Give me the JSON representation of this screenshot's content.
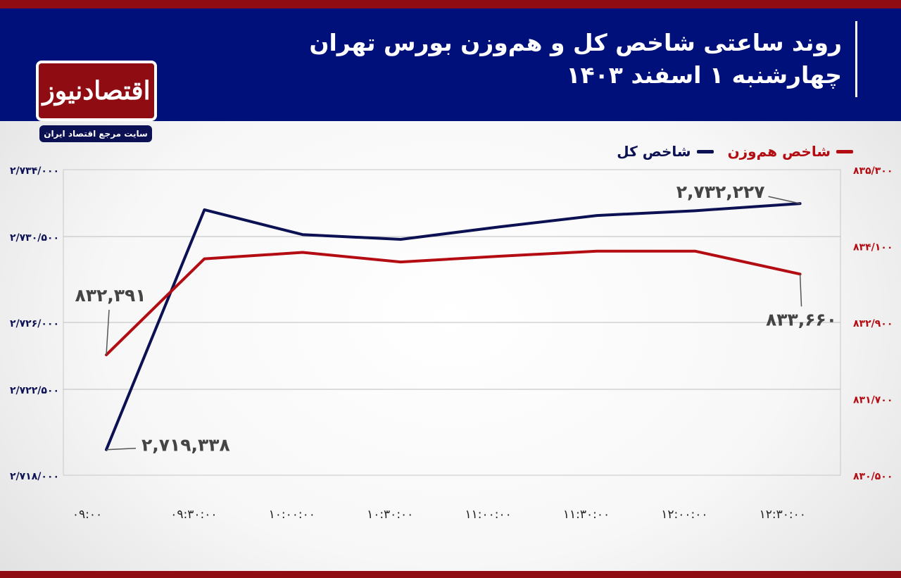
{
  "header": {
    "title": "روند ساعتی شاخص کل و هم‌وزن بورس تهران",
    "subtitle": "چهارشنبه ۱ اسفند ۱۴۰۳"
  },
  "logo": {
    "name": "اقتصادنیوز",
    "tagline": "سایت مرجع اقتصاد ایران"
  },
  "colors": {
    "header_bg": "#00107a",
    "accent_red": "#8f0d12",
    "total_index_line": "#0b1152",
    "equal_weight_line": "#b30c12"
  },
  "chart_data": {
    "type": "line",
    "x": [
      "۰۹:۰۰",
      "۰۹:۳۰:۰۰",
      "۱۰:۰۰:۰۰",
      "۱۰:۳۰:۰۰",
      "۱۱:۰۰:۰۰",
      "۱۱:۳۰:۰۰",
      "۱۲:۰۰:۰۰",
      "۱۲:۳۰:۰۰"
    ],
    "series": [
      {
        "name": "شاخص کل",
        "axis": "left",
        "color": "#0b1152",
        "values": [
          2719338,
          2731900,
          2730600,
          2730350,
          2731000,
          2731600,
          2731850,
          2732227
        ],
        "x_index": [
          0,
          1,
          2,
          3,
          4,
          5,
          6,
          7.07
        ]
      },
      {
        "name": "شاخص هم‌وزن",
        "axis": "right",
        "color": "#b30c12",
        "values": [
          832391,
          833900,
          834000,
          833850,
          833940,
          834020,
          834020,
          833660
        ],
        "x_index": [
          0,
          1,
          2,
          3,
          4,
          5,
          6,
          7.07
        ]
      }
    ],
    "left_axis": {
      "range": [
        2718000,
        2734000
      ],
      "ticks": [
        2718000,
        2722500,
        2726000,
        2730500,
        2734000
      ],
      "tick_labels": [
        "۲/۷۱۸/۰۰۰",
        "۲/۷۲۲/۵۰۰",
        "۲/۷۲۶/۰۰۰",
        "۲/۷۳۰/۵۰۰",
        "۲/۷۳۴/۰۰۰"
      ]
    },
    "right_axis": {
      "range": [
        830500,
        835300
      ],
      "ticks": [
        830500,
        831700,
        832900,
        834100,
        835300
      ],
      "tick_labels": [
        "۸۳۰/۵۰۰",
        "۸۳۱/۷۰۰",
        "۸۳۲/۹۰۰",
        "۸۳۴/۱۰۰",
        "۸۳۵/۳۰۰"
      ]
    },
    "annotations": [
      {
        "series": 0,
        "index": 0,
        "text": "۲,۷۱۹,۳۳۸"
      },
      {
        "series": 0,
        "index": 7,
        "text": "۲,۷۳۲,۲۲۷"
      },
      {
        "series": 1,
        "index": 0,
        "text": "۸۳۲,۳۹۱"
      },
      {
        "series": 1,
        "index": 7,
        "text": "۸۳۳,۶۶۰"
      }
    ],
    "legend_position": "top-right",
    "grid": true
  }
}
